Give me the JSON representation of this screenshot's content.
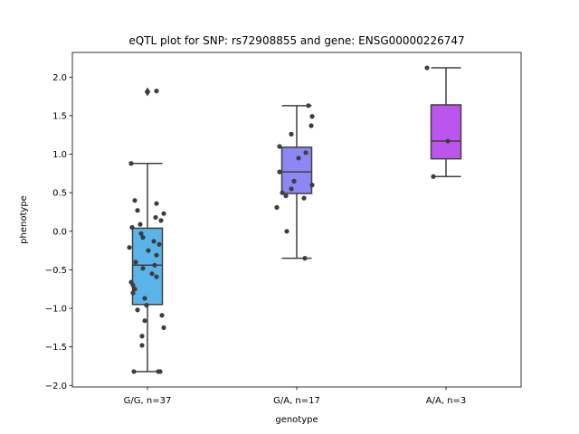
{
  "chart_data": {
    "type": "box",
    "title": "eQTL plot for SNP: rs72908855 and gene: ENSG00000226747",
    "xlabel": "genotype",
    "ylabel": "phenotype",
    "ylim": [
      -2.02,
      2.32
    ],
    "yticks": [
      -2.0,
      -1.5,
      -1.0,
      -0.5,
      0.0,
      0.5,
      1.0,
      1.5,
      2.0
    ],
    "ytick_labels": [
      "−2.0",
      "−1.5",
      "−1.0",
      "−0.5",
      "0.0",
      "0.5",
      "1.0",
      "1.5",
      "2.0"
    ],
    "grid": false,
    "categories": [
      "G/G, n=37",
      "G/A, n=17",
      "A/A, n=3"
    ],
    "boxes": [
      {
        "category": "G/G, n=37",
        "color": "#5ab4ea",
        "whisker_low": -1.82,
        "q1": -0.95,
        "median": -0.44,
        "q3": 0.04,
        "whisker_high": 0.88,
        "fliers": [
          1.81
        ]
      },
      {
        "category": "G/A, n=17",
        "color": "#8c87f2",
        "whisker_low": -0.35,
        "q1": 0.49,
        "median": 0.77,
        "q3": 1.09,
        "whisker_high": 1.63,
        "fliers": []
      },
      {
        "category": "A/A, n=3",
        "color": "#bc55ee",
        "whisker_low": 0.71,
        "q1": 0.94,
        "median": 1.17,
        "q3": 1.64,
        "whisker_high": 2.12,
        "fliers": []
      }
    ],
    "points": [
      {
        "group": "G/G, n=37",
        "x_offset": 0.1,
        "y": 1.82
      },
      {
        "group": "G/G, n=37",
        "x_offset": -0.18,
        "y": 0.88
      },
      {
        "group": "G/G, n=37",
        "x_offset": -0.14,
        "y": 0.4
      },
      {
        "group": "G/G, n=37",
        "x_offset": 0.1,
        "y": 0.36
      },
      {
        "group": "G/G, n=37",
        "x_offset": -0.11,
        "y": 0.27
      },
      {
        "group": "G/G, n=37",
        "x_offset": 0.18,
        "y": 0.23
      },
      {
        "group": "G/G, n=37",
        "x_offset": 0.09,
        "y": 0.18
      },
      {
        "group": "G/G, n=37",
        "x_offset": 0.15,
        "y": 0.14
      },
      {
        "group": "G/G, n=37",
        "x_offset": -0.08,
        "y": 0.09
      },
      {
        "group": "G/G, n=37",
        "x_offset": -0.17,
        "y": 0.05
      },
      {
        "group": "G/G, n=37",
        "x_offset": -0.07,
        "y": -0.03
      },
      {
        "group": "G/G, n=37",
        "x_offset": -0.05,
        "y": -0.08
      },
      {
        "group": "G/G, n=37",
        "x_offset": 0.07,
        "y": -0.13
      },
      {
        "group": "G/G, n=37",
        "x_offset": 0.13,
        "y": -0.17
      },
      {
        "group": "G/G, n=37",
        "x_offset": -0.2,
        "y": -0.21
      },
      {
        "group": "G/G, n=37",
        "x_offset": 0.01,
        "y": -0.25
      },
      {
        "group": "G/G, n=37",
        "x_offset": 0.1,
        "y": -0.31
      },
      {
        "group": "G/G, n=37",
        "x_offset": -0.13,
        "y": -0.4
      },
      {
        "group": "G/G, n=37",
        "x_offset": 0.08,
        "y": -0.44
      },
      {
        "group": "G/G, n=37",
        "x_offset": -0.05,
        "y": -0.48
      },
      {
        "group": "G/G, n=37",
        "x_offset": 0.05,
        "y": -0.55
      },
      {
        "group": "G/G, n=37",
        "x_offset": 0.1,
        "y": -0.59
      },
      {
        "group": "G/G, n=37",
        "x_offset": -0.18,
        "y": -0.66
      },
      {
        "group": "G/G, n=37",
        "x_offset": -0.16,
        "y": -0.7
      },
      {
        "group": "G/G, n=37",
        "x_offset": -0.14,
        "y": -0.75
      },
      {
        "group": "G/G, n=37",
        "x_offset": -0.16,
        "y": -0.8
      },
      {
        "group": "G/G, n=37",
        "x_offset": -0.03,
        "y": -0.87
      },
      {
        "group": "G/G, n=37",
        "x_offset": -0.01,
        "y": -0.96
      },
      {
        "group": "G/G, n=37",
        "x_offset": -0.11,
        "y": -1.02
      },
      {
        "group": "G/G, n=37",
        "x_offset": 0.16,
        "y": -1.09
      },
      {
        "group": "G/G, n=37",
        "x_offset": -0.03,
        "y": -1.16
      },
      {
        "group": "G/G, n=37",
        "x_offset": 0.18,
        "y": -1.25
      },
      {
        "group": "G/G, n=37",
        "x_offset": -0.06,
        "y": -1.36
      },
      {
        "group": "G/G, n=37",
        "x_offset": -0.06,
        "y": -1.48
      },
      {
        "group": "G/G, n=37",
        "x_offset": -0.15,
        "y": -1.82
      },
      {
        "group": "G/G, n=37",
        "x_offset": 0.12,
        "y": -1.82
      },
      {
        "group": "G/G, n=37",
        "x_offset": 0.14,
        "y": -1.82
      },
      {
        "group": "G/A, n=17",
        "x_offset": 0.13,
        "y": 1.63
      },
      {
        "group": "G/A, n=17",
        "x_offset": 0.17,
        "y": 1.49
      },
      {
        "group": "G/A, n=17",
        "x_offset": 0.16,
        "y": 1.37
      },
      {
        "group": "G/A, n=17",
        "x_offset": -0.06,
        "y": 1.26
      },
      {
        "group": "G/A, n=17",
        "x_offset": -0.19,
        "y": 1.1
      },
      {
        "group": "G/A, n=17",
        "x_offset": 0.1,
        "y": 1.02
      },
      {
        "group": "G/A, n=17",
        "x_offset": 0.02,
        "y": 0.95
      },
      {
        "group": "G/A, n=17",
        "x_offset": -0.19,
        "y": 0.77
      },
      {
        "group": "G/A, n=17",
        "x_offset": -0.03,
        "y": 0.65
      },
      {
        "group": "G/A, n=17",
        "x_offset": 0.17,
        "y": 0.6
      },
      {
        "group": "G/A, n=17",
        "x_offset": -0.06,
        "y": 0.55
      },
      {
        "group": "G/A, n=17",
        "x_offset": -0.16,
        "y": 0.5
      },
      {
        "group": "G/A, n=17",
        "x_offset": -0.12,
        "y": 0.46
      },
      {
        "group": "G/A, n=17",
        "x_offset": 0.08,
        "y": 0.43
      },
      {
        "group": "G/A, n=17",
        "x_offset": -0.22,
        "y": 0.31
      },
      {
        "group": "G/A, n=17",
        "x_offset": -0.11,
        "y": 0.0
      },
      {
        "group": "G/A, n=17",
        "x_offset": 0.09,
        "y": -0.35
      },
      {
        "group": "A/A, n=3",
        "x_offset": -0.21,
        "y": 2.12
      },
      {
        "group": "A/A, n=3",
        "x_offset": 0.02,
        "y": 1.17
      },
      {
        "group": "A/A, n=3",
        "x_offset": -0.14,
        "y": 0.71
      }
    ]
  }
}
